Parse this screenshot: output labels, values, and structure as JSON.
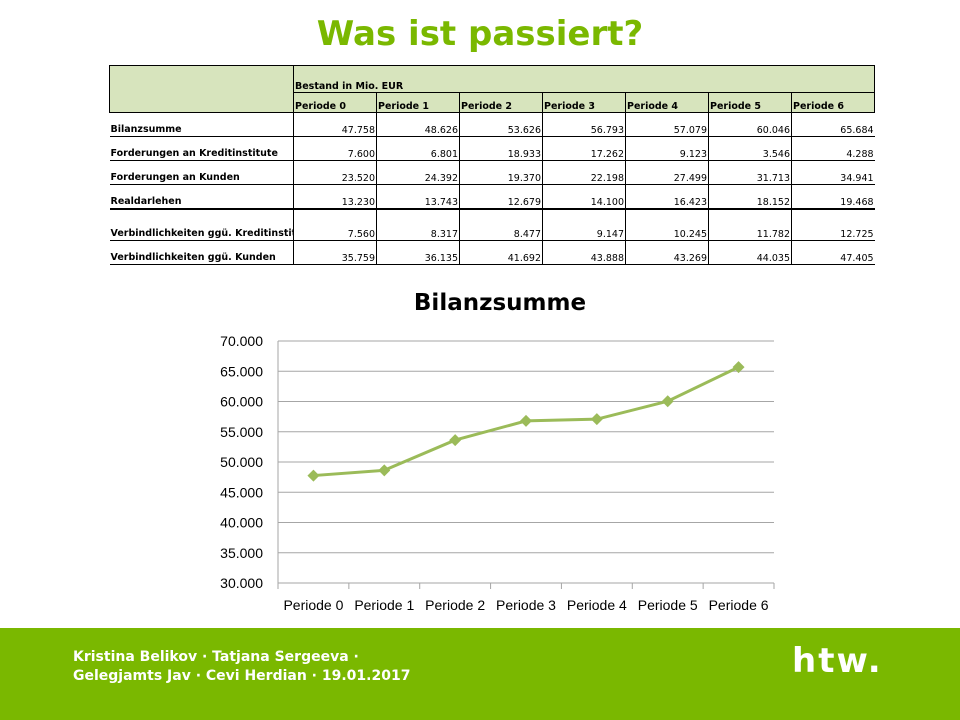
{
  "slide_title": "Was ist passiert?",
  "table": {
    "group_header": "Bestand in Mio. EUR",
    "periods": [
      "Periode 0",
      "Periode 1",
      "Periode 2",
      "Periode 3",
      "Periode 4",
      "Periode 5",
      "Periode 6"
    ],
    "rows": [
      {
        "label": "Bilanzsumme",
        "values": [
          "47.758",
          "48.626",
          "53.626",
          "56.793",
          "57.079",
          "60.046",
          "65.684"
        ]
      },
      {
        "label": "Forderungen  an Kreditinstitute",
        "values": [
          "7.600",
          "6.801",
          "18.933",
          "17.262",
          "9.123",
          "3.546",
          "4.288"
        ]
      },
      {
        "label": "Forderungen  an Kunden",
        "values": [
          "23.520",
          "24.392",
          "19.370",
          "22.198",
          "27.499",
          "31.713",
          "34.941"
        ]
      },
      {
        "label": "Realdarlehen",
        "values": [
          "13.230",
          "13.743",
          "12.679",
          "14.100",
          "16.423",
          "18.152",
          "19.468"
        ]
      },
      {
        "label": "Verbindlichkeiten  ggü. Kreditinstituten",
        "values": [
          "7.560",
          "8.317",
          "8.477",
          "9.147",
          "10.245",
          "11.782",
          "12.725"
        ]
      },
      {
        "label": "Verbindlichkeiten  ggü. Kunden",
        "values": [
          "35.759",
          "36.135",
          "41.692",
          "43.888",
          "43.269",
          "44.035",
          "47.405"
        ]
      }
    ]
  },
  "chart_data": {
    "type": "line",
    "title": "Bilanzsumme",
    "categories": [
      "Periode 0",
      "Periode 1",
      "Periode 2",
      "Periode 3",
      "Periode 4",
      "Periode 5",
      "Periode 6"
    ],
    "values": [
      47758,
      48626,
      53626,
      56793,
      57079,
      60046,
      65684
    ],
    "ylim": [
      30000,
      70000
    ],
    "yticks": [
      "30.000",
      "35.000",
      "40.000",
      "45.000",
      "50.000",
      "55.000",
      "60.000",
      "65.000",
      "70.000"
    ],
    "grid": true,
    "legend": "none",
    "line_color": "#9bbb59",
    "marker": "diamond"
  },
  "footer": {
    "authors": "Kristina  Belikov  · Tatjana Sergeeva · Gelegjamts  Jav  · Cevi Herdian  · 19.01.2017",
    "logo_text": "htw.",
    "background_color": "#7ab800"
  }
}
